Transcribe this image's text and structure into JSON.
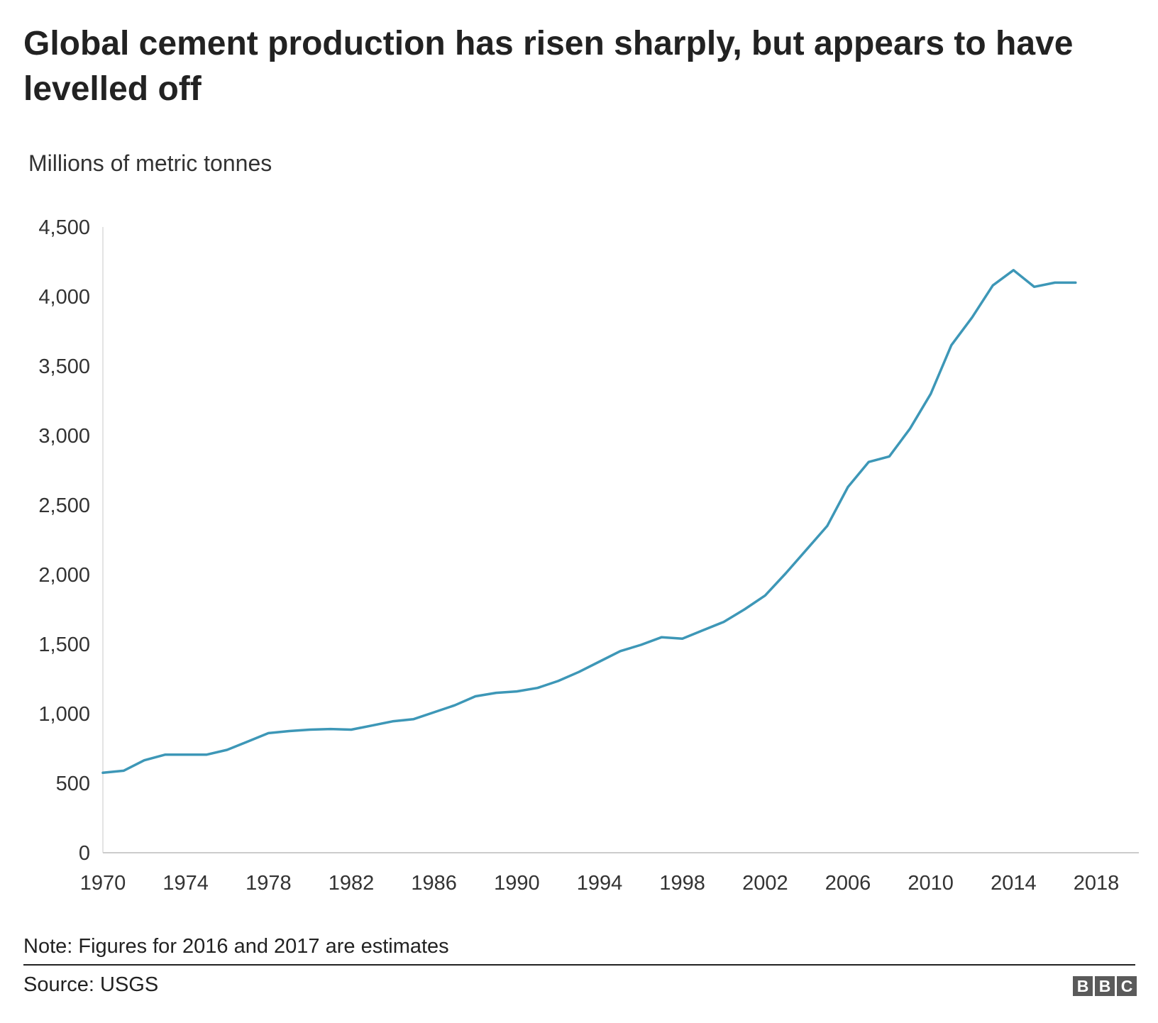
{
  "title": "Global cement production has risen sharply, but appears to have levelled off",
  "chart_data": {
    "type": "line",
    "title": "Global cement production has risen sharply, but appears to have levelled off",
    "ylabel": "Millions of metric tonnes",
    "xlabel": "",
    "xlim": [
      1970,
      2018
    ],
    "ylim": [
      0,
      4500
    ],
    "x_ticks": [
      "1970",
      "1974",
      "1978",
      "1982",
      "1986",
      "1990",
      "1994",
      "1998",
      "2002",
      "2006",
      "2010",
      "2014",
      "2018"
    ],
    "y_ticks": [
      "0",
      "500",
      "1,000",
      "1,500",
      "2,000",
      "2,500",
      "3,000",
      "3,500",
      "4,000",
      "4,500"
    ],
    "grid": false,
    "line_color": "#3d97b7",
    "series": [
      {
        "x": [
          1970,
          1971,
          1972,
          1973,
          1974,
          1975,
          1976,
          1977,
          1978,
          1979,
          1980,
          1981,
          1982,
          1983,
          1984,
          1985,
          1986,
          1987,
          1988,
          1989,
          1990,
          1991,
          1992,
          1993,
          1994,
          1995,
          1996,
          1997,
          1998,
          1999,
          2000,
          2001,
          2002,
          2003,
          2004,
          2005,
          2006,
          2007,
          2008,
          2009,
          2010,
          2011,
          2012,
          2013,
          2014,
          2015,
          2016,
          2017
        ],
        "y": [
          575,
          590,
          665,
          705,
          705,
          705,
          740,
          800,
          860,
          875,
          885,
          890,
          885,
          915,
          945,
          960,
          1010,
          1060,
          1125,
          1150,
          1160,
          1185,
          1235,
          1300,
          1375,
          1450,
          1495,
          1550,
          1540,
          1600,
          1660,
          1750,
          1850,
          2010,
          2180,
          2350,
          2630,
          2810,
          2850,
          3050,
          3300,
          3650,
          3850,
          4080,
          4190,
          4070,
          4100,
          4100
        ]
      }
    ]
  },
  "note": "Note: Figures for 2016 and 2017 are estimates",
  "source": "Source: USGS",
  "logo": [
    "B",
    "B",
    "C"
  ]
}
